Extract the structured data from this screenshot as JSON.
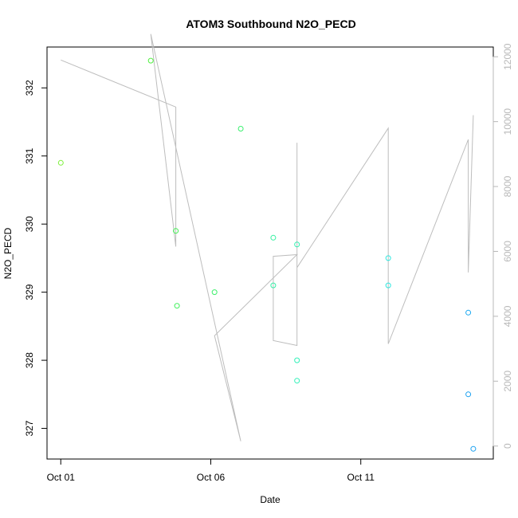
{
  "chart_data": {
    "type": "scatter",
    "title": "ATOM3 Southbound N2O_PECD",
    "xlabel": "Date",
    "ylabel": "N2O_PECD",
    "x_axis": {
      "kind": "date",
      "range": [
        "2017-09-30T13:00",
        "2017-10-15T10:00"
      ],
      "ticks": [
        {
          "date": "2017-10-01",
          "label": "Oct 01"
        },
        {
          "date": "2017-10-06",
          "label": "Oct 06"
        },
        {
          "date": "2017-10-11",
          "label": "Oct 11"
        }
      ]
    },
    "y_axis": {
      "range": [
        326.55,
        332.6
      ],
      "ticks": [
        327,
        328,
        329,
        330,
        331,
        332
      ]
    },
    "y2_axis": {
      "range": [
        -400,
        12300
      ],
      "ticks": [
        0,
        2000,
        4000,
        6000,
        8000,
        10000,
        12000
      ],
      "color": "#b8b8b8"
    },
    "series": [
      {
        "marker": "circle",
        "points": [
          {
            "x": "2017-10-01T00:00",
            "y": 330.9,
            "color": "#7cf03a"
          },
          {
            "x": "2017-10-04T00:00",
            "y": 332.4,
            "color": "#50f040"
          },
          {
            "x": "2017-10-04T20:00",
            "y": 329.9,
            "color": "#40f050"
          },
          {
            "x": "2017-10-04T21:00",
            "y": 328.8,
            "color": "#3cf058"
          },
          {
            "x": "2017-10-06T03:00",
            "y": 329.0,
            "color": "#3cf06a"
          },
          {
            "x": "2017-10-07T00:00",
            "y": 331.4,
            "color": "#3cf070"
          },
          {
            "x": "2017-10-08T02:00",
            "y": 329.8,
            "color": "#34f0a0"
          },
          {
            "x": "2017-10-08T02:00",
            "y": 329.1,
            "color": "#34f0a8"
          },
          {
            "x": "2017-10-08T21:00",
            "y": 329.7,
            "color": "#30f0b0"
          },
          {
            "x": "2017-10-08T21:00",
            "y": 328.0,
            "color": "#30f0b8"
          },
          {
            "x": "2017-10-08T21:00",
            "y": 327.7,
            "color": "#30f0b8"
          },
          {
            "x": "2017-10-11T22:00",
            "y": 329.5,
            "color": "#30e8e0"
          },
          {
            "x": "2017-10-11T22:00",
            "y": 329.1,
            "color": "#30e8e0"
          },
          {
            "x": "2017-10-14T14:00",
            "y": 328.7,
            "color": "#1aa8f0"
          },
          {
            "x": "2017-10-14T14:00",
            "y": 327.5,
            "color": "#1aa0f0"
          },
          {
            "x": "2017-10-14T18:00",
            "y": 326.7,
            "color": "#1aa0f0"
          }
        ]
      },
      {
        "type": "line",
        "axis": "y2",
        "color": "#bdbdbd",
        "points": [
          {
            "x": "2017-10-01T00:00",
            "y": 11900
          },
          {
            "x": "2017-10-04T20:00",
            "y": 10450
          },
          {
            "x": "2017-10-04T20:00",
            "y": 6150
          },
          {
            "x": "2017-10-04T00:00",
            "y": 12700
          },
          {
            "x": "2017-10-07T00:00",
            "y": 150
          },
          {
            "x": "2017-10-06T03:00",
            "y": 3400
          },
          {
            "x": "2017-10-08T21:00",
            "y": 5900
          },
          {
            "x": "2017-10-08T02:00",
            "y": 5850
          },
          {
            "x": "2017-10-08T02:00",
            "y": 3250
          },
          {
            "x": "2017-10-08T21:00",
            "y": 3100
          },
          {
            "x": "2017-10-08T21:00",
            "y": 9350
          },
          {
            "x": "2017-10-08T21:00",
            "y": 5500
          },
          {
            "x": "2017-10-11T22:00",
            "y": 9800
          },
          {
            "x": "2017-10-11T22:00",
            "y": 3150
          },
          {
            "x": "2017-10-14T14:00",
            "y": 9450
          },
          {
            "x": "2017-10-14T14:00",
            "y": 5350
          },
          {
            "x": "2017-10-14T18:00",
            "y": 10200
          }
        ]
      }
    ]
  }
}
